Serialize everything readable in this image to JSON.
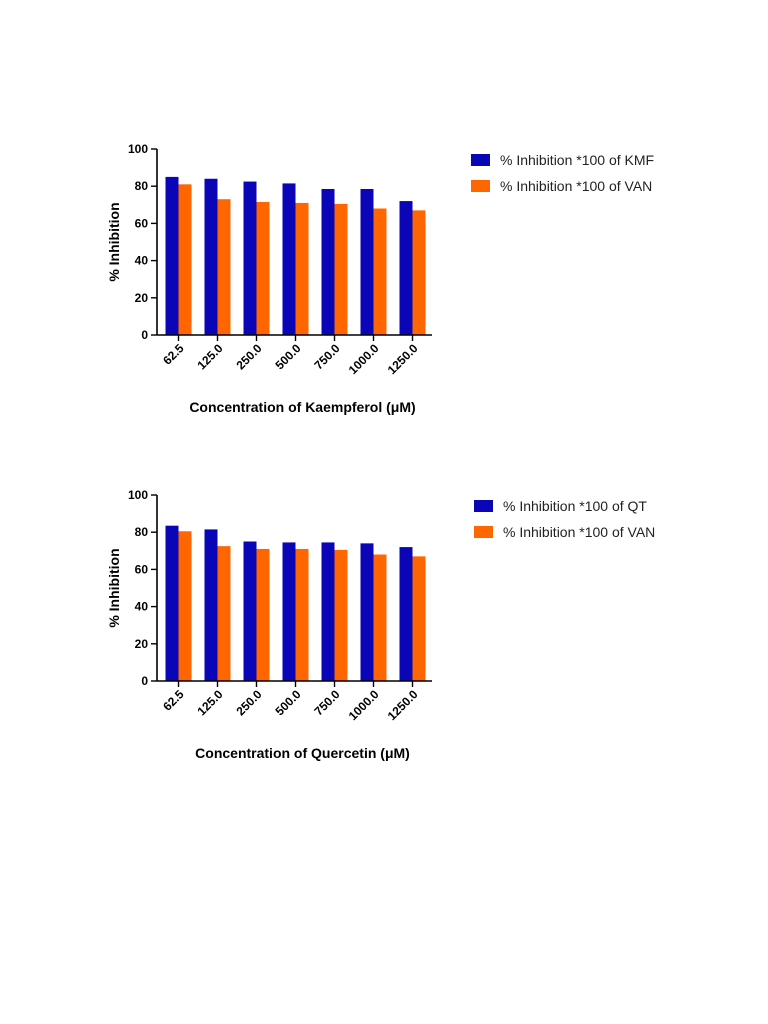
{
  "chart_data": [
    {
      "type": "bar",
      "categories": [
        "62.5",
        "125.0",
        "250.0",
        "500.0",
        "750.0",
        "1000.0",
        "1250.0"
      ],
      "series": [
        {
          "name": "% Inhibition *100 of KMF",
          "color": "#0a06b8",
          "values": [
            85,
            84,
            82.5,
            81.5,
            78.5,
            78.5,
            72
          ]
        },
        {
          "name": "% Inhibition *100 of VAN",
          "color": "#ff6600",
          "values": [
            81,
            73,
            71.5,
            71,
            70.5,
            68,
            67
          ]
        }
      ],
      "title": "",
      "xlabel": "Concentration of Kaempferol (μM)",
      "ylabel": "% Inhibition",
      "ylim": [
        0,
        100
      ],
      "yticks": [
        "0",
        "20",
        "40",
        "60",
        "80",
        "100"
      ],
      "legend_position": "right"
    },
    {
      "type": "bar",
      "categories": [
        "62.5",
        "125.0",
        "250.0",
        "500.0",
        "750.0",
        "1000.0",
        "1250.0"
      ],
      "series": [
        {
          "name": "% Inhibition *100 of QT",
          "color": "#0a06b8",
          "values": [
            83.5,
            81.5,
            75,
            74.5,
            74.5,
            74,
            72
          ]
        },
        {
          "name": "% Inhibition *100 of VAN",
          "color": "#ff6600",
          "values": [
            80.5,
            72.5,
            71,
            71,
            70.5,
            68,
            67
          ]
        }
      ],
      "title": "",
      "xlabel": "Concentration of Quercetin (μM)",
      "ylabel": "% Inhibition",
      "ylim": [
        0,
        100
      ],
      "yticks": [
        "0",
        "20",
        "40",
        "60",
        "80",
        "100"
      ],
      "legend_position": "right"
    }
  ]
}
